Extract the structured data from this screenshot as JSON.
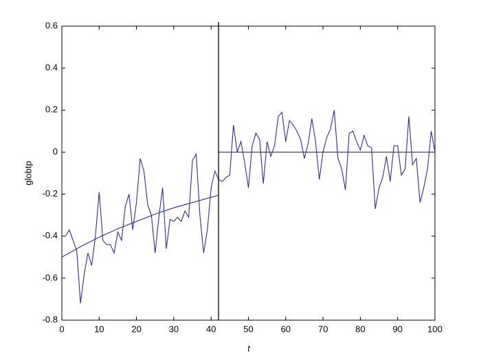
{
  "chart_data": {
    "type": "line",
    "xlabel": "t",
    "ylabel": "globtp",
    "xlim": [
      0,
      100
    ],
    "xticks": [
      0,
      10,
      20,
      30,
      40,
      50,
      60,
      70,
      80,
      90,
      100
    ],
    "ylim": [
      -0.8,
      0.6
    ],
    "yticks": [
      -0.8,
      -0.6,
      -0.4,
      -0.2,
      0,
      0.2,
      0.4,
      0.6
    ],
    "vline": {
      "x": 42,
      "color": "#000000"
    },
    "series": [
      {
        "color": "#2e2e8c",
        "x": [
          1,
          2,
          3,
          4,
          5,
          6,
          7,
          8,
          9,
          10,
          11,
          12,
          13,
          14,
          15,
          16,
          17,
          18,
          19,
          20,
          21,
          22,
          23,
          24,
          25,
          26,
          27,
          28,
          29,
          30,
          31,
          32,
          33,
          34,
          35,
          36,
          37,
          38,
          39,
          40,
          41,
          42,
          43,
          44,
          45,
          46,
          47,
          48,
          49,
          50,
          51,
          52,
          53,
          54,
          55,
          56,
          57,
          58,
          59,
          60,
          61,
          62,
          63,
          64,
          65,
          66,
          67,
          68,
          69,
          70,
          71,
          72,
          73,
          74,
          75,
          76,
          77,
          78,
          79,
          80,
          81,
          82,
          83,
          84,
          85,
          86,
          87,
          88,
          89,
          90,
          91,
          92,
          93,
          94,
          95,
          96,
          97,
          98,
          99,
          100
        ],
        "values": [
          -0.4,
          -0.37,
          -0.42,
          -0.47,
          -0.72,
          -0.58,
          -0.48,
          -0.54,
          -0.4,
          -0.19,
          -0.42,
          -0.44,
          -0.44,
          -0.48,
          -0.38,
          -0.42,
          -0.26,
          -0.2,
          -0.37,
          -0.24,
          -0.03,
          -0.09,
          -0.25,
          -0.3,
          -0.48,
          -0.31,
          -0.17,
          -0.46,
          -0.32,
          -0.33,
          -0.31,
          -0.33,
          -0.28,
          -0.31,
          -0.04,
          -0.01,
          -0.3,
          -0.48,
          -0.37,
          -0.17,
          -0.09,
          -0.13,
          -0.14,
          -0.12,
          -0.11,
          0.13,
          0.0,
          0.05,
          -0.05,
          -0.17,
          0.03,
          0.09,
          0.06,
          -0.15,
          0.05,
          -0.02,
          0.03,
          0.17,
          0.19,
          0.05,
          0.15,
          0.13,
          0.1,
          0.06,
          -0.03,
          0.04,
          0.16,
          0.05,
          -0.13,
          0.0,
          0.07,
          0.11,
          0.2,
          -0.03,
          -0.08,
          -0.18,
          0.09,
          0.1,
          0.05,
          0.01,
          0.08,
          0.03,
          0.02,
          -0.27,
          -0.17,
          -0.12,
          -0.02,
          -0.14,
          0.03,
          0.03,
          -0.11,
          -0.08,
          0.17,
          -0.06,
          -0.03,
          -0.24,
          -0.17,
          -0.08,
          0.1,
          0.0
        ]
      },
      {
        "color": "#2e2e8c",
        "x": [
          0,
          5,
          10,
          15,
          20,
          25,
          30,
          35,
          42
        ],
        "values": [
          -0.5,
          -0.45,
          -0.405,
          -0.365,
          -0.33,
          -0.295,
          -0.265,
          -0.24,
          -0.205
        ]
      },
      {
        "color": "#2e2e8c",
        "x": [
          42,
          100
        ],
        "values": [
          0,
          0
        ]
      }
    ]
  }
}
